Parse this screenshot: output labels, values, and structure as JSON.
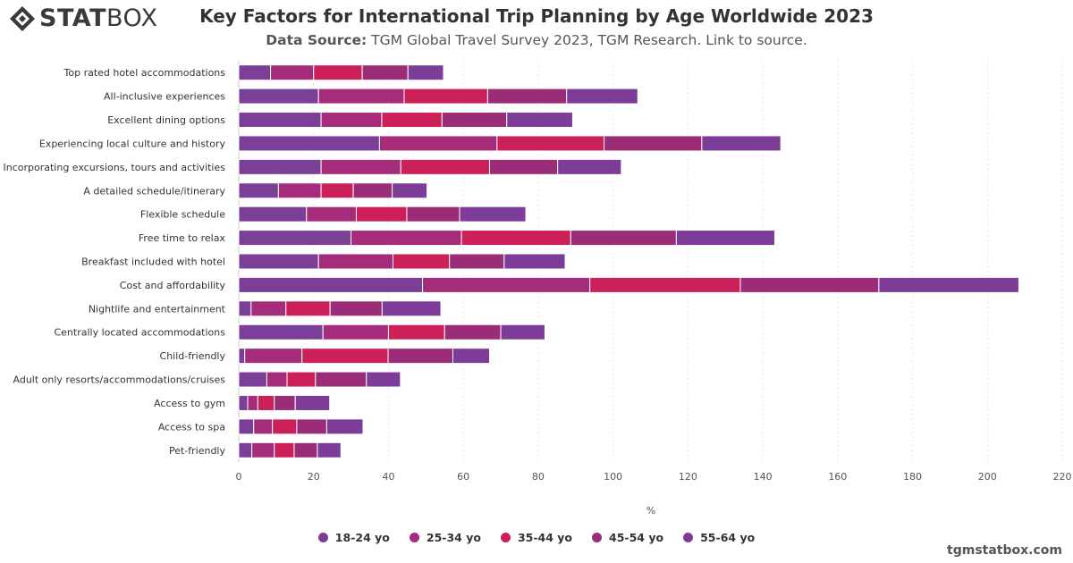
{
  "header": {
    "logo_strong": "STAT",
    "logo_light": "BOX",
    "title": "Key Factors for International Trip Planning by Age Worldwide 2023",
    "subtitle_label": "Data Source:",
    "subtitle_text": " TGM Global Travel Survey 2023, TGM Research. Link to source."
  },
  "footer": {
    "site": "tgmstatbox.com"
  },
  "chart_data": {
    "type": "bar",
    "orientation": "horizontal",
    "stacked": true,
    "title": "Key Factors for International Trip Planning by Age Worldwide 2023",
    "xlabel": "%",
    "xlim": [
      0,
      220
    ],
    "xticks": [
      0,
      20,
      40,
      60,
      80,
      100,
      120,
      140,
      160,
      180,
      200,
      220
    ],
    "grid": true,
    "legend_position": "bottom",
    "categories": [
      "Top rated hotel accommodations",
      "All-inclusive experiences",
      "Excellent dining options",
      "Experiencing local culture and history",
      "Incorporating excursions, tours and activities",
      "A detailed schedule/itinerary",
      "Flexible schedule",
      "Free time to relax",
      "Breakfast included with hotel",
      "Cost and affordability",
      "Nightlife and entertainment",
      "Centrally located accommodations",
      "Child-friendly",
      "Adult only resorts/accommodations/cruises",
      "Access to gym",
      "Access to spa",
      "Pet-friendly"
    ],
    "series": [
      {
        "name": "18-24 yo",
        "color": "#7b3f98",
        "values": [
          8.5,
          21.3,
          22,
          37.6,
          22,
          10.6,
          18.1,
          30,
          21.3,
          49.1,
          3.3,
          22.5,
          1.6,
          7.5,
          2.4,
          4,
          3.5
        ]
      },
      {
        "name": "25-34 yo",
        "color": "#a52c7a",
        "values": [
          11.5,
          22.9,
          16.2,
          31.4,
          21.3,
          11.4,
          13.3,
          29.5,
          19.9,
          44.7,
          9.3,
          17.5,
          15.3,
          5.4,
          2.7,
          5,
          6
        ]
      },
      {
        "name": "35-44 yo",
        "color": "#cc2059",
        "values": [
          13,
          22.3,
          16.1,
          28.6,
          23.7,
          8.6,
          13.5,
          29.2,
          15.1,
          40.2,
          11.8,
          15,
          23,
          7.6,
          4.4,
          6.5,
          5.3
        ]
      },
      {
        "name": "45-54 yo",
        "color": "#9b2c78",
        "values": [
          12.2,
          21.1,
          17.3,
          26.1,
          18.2,
          10.4,
          14.1,
          28.2,
          14.6,
          37,
          13.9,
          15,
          17.3,
          13.6,
          5.6,
          8,
          6.2
        ]
      },
      {
        "name": "55-64 yo",
        "color": "#7d3c98",
        "values": [
          9.5,
          19,
          17.6,
          21.1,
          17,
          9.3,
          17.7,
          26.3,
          16.3,
          37.4,
          15.7,
          11.8,
          9.8,
          9.1,
          9.2,
          9.7,
          6.3
        ]
      }
    ]
  }
}
